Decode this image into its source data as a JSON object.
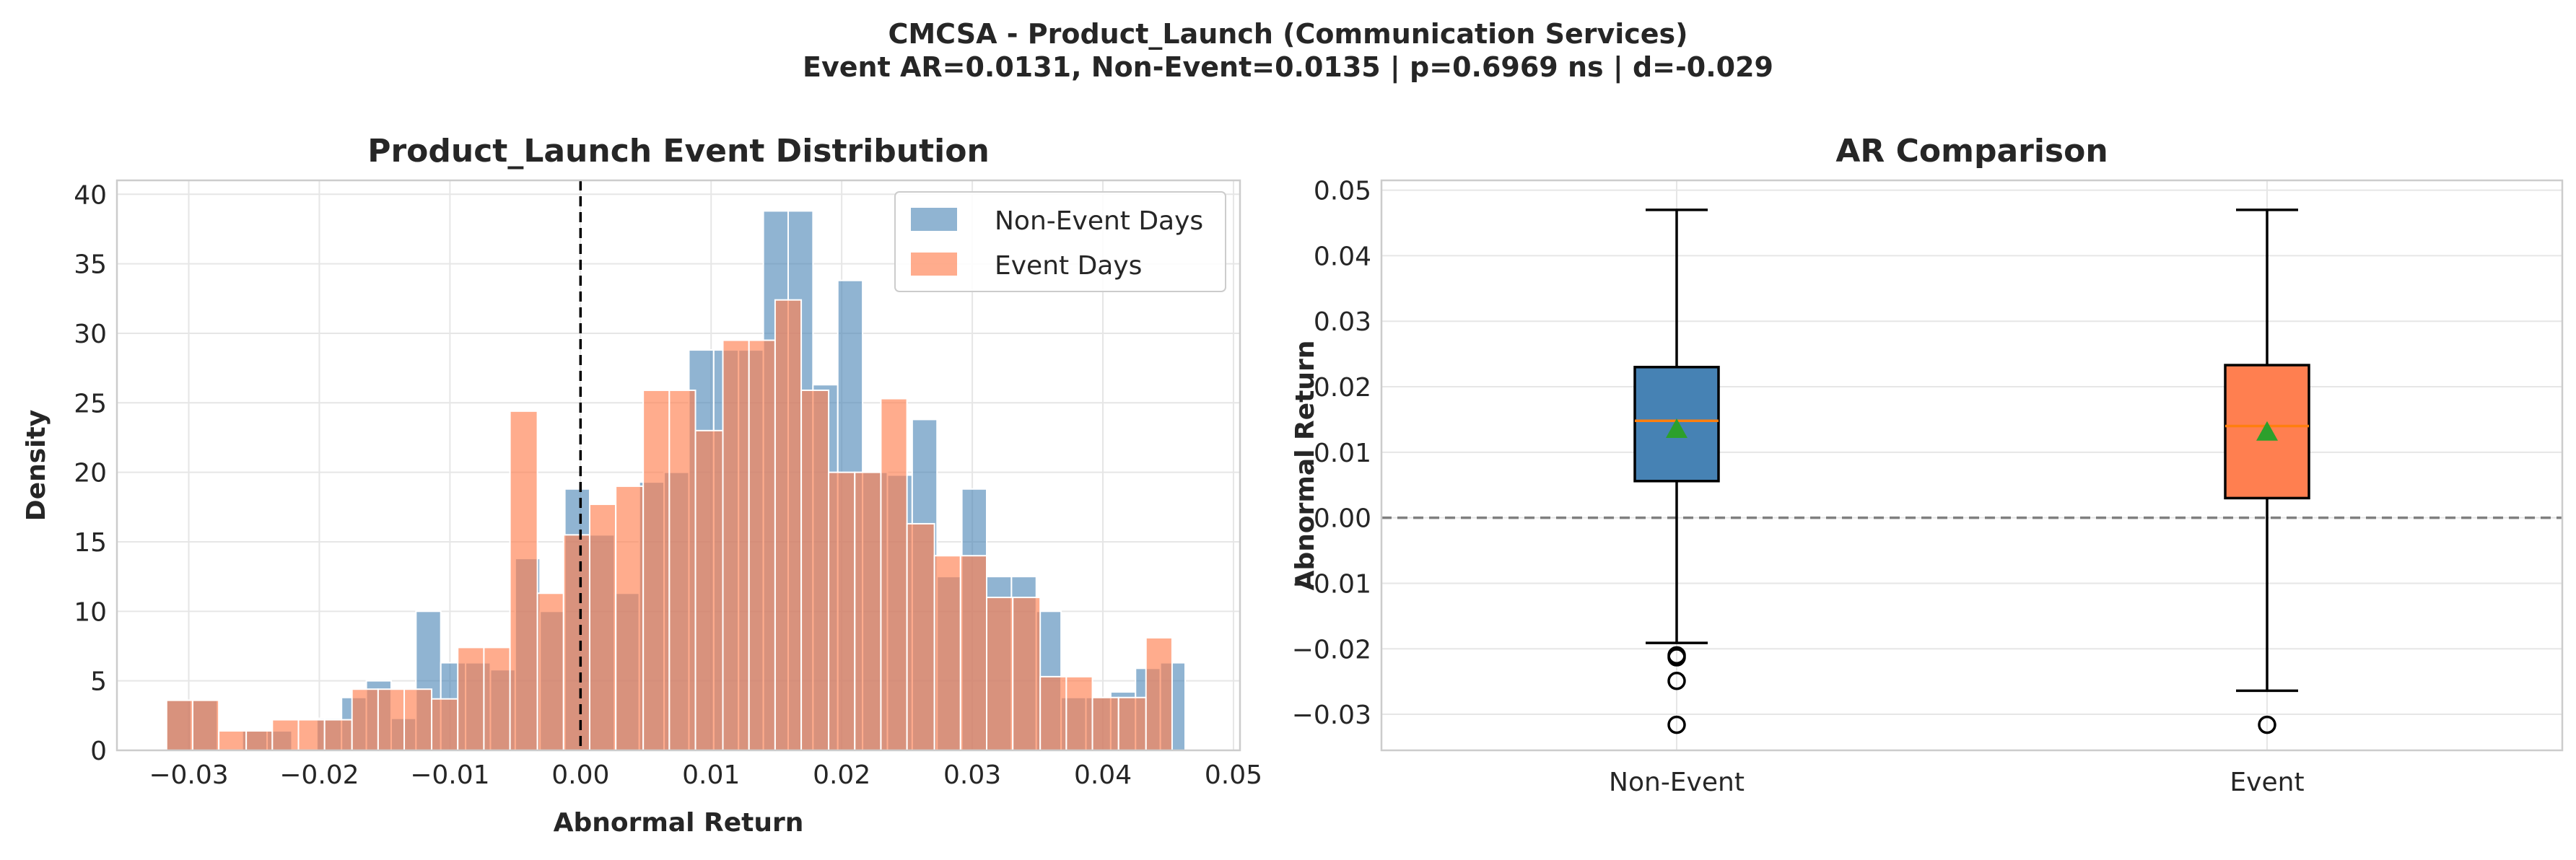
{
  "suptitle": {
    "line1": "CMCSA - Product_Launch (Communication Services)",
    "line2": "Event AR=0.0131, Non-Event=0.0135 | p=0.6969 ns | d=-0.029"
  },
  "colors": {
    "non_event": "#4682b4",
    "event": "#ff7f50",
    "median": "#ff7f0e",
    "mean": "#2ca02c",
    "grid": "#e6e6e6",
    "spine": "#cccccc"
  },
  "chart_data": [
    {
      "type": "histogram",
      "title": "Product_Launch Event Distribution",
      "xlabel": "Abnormal Return",
      "ylabel": "Density",
      "xlim": [
        -0.0355,
        0.0505
      ],
      "ylim": [
        0,
        41
      ],
      "xticks": [
        -0.03,
        -0.02,
        -0.01,
        0.0,
        0.01,
        0.02,
        0.03,
        0.04,
        0.05
      ],
      "xtick_labels": [
        "−0.03",
        "−0.02",
        "−0.01",
        "0.00",
        "0.01",
        "0.02",
        "0.03",
        "0.04",
        "0.05"
      ],
      "yticks": [
        0,
        5,
        10,
        15,
        20,
        25,
        30,
        35,
        40
      ],
      "legend_position": "upper-right",
      "reference_line_x": 0.0,
      "series": [
        {
          "name": "Non-Event Days",
          "key": "non_event",
          "alpha": 0.6,
          "bin_edges": [
            -0.0317,
            -0.0298,
            -0.0278,
            -0.0259,
            -0.024,
            -0.0221,
            -0.0202,
            -0.0183,
            -0.0164,
            -0.0145,
            -0.0126,
            -0.0107,
            -0.0088,
            -0.0069,
            -0.005,
            -0.0031,
            -0.0012,
            0.0007,
            0.0026,
            0.0045,
            0.0064,
            0.0083,
            0.0102,
            0.0121,
            0.014,
            0.0159,
            0.0178,
            0.0197,
            0.0216,
            0.0235,
            0.0254,
            0.0273,
            0.0292,
            0.0311,
            0.033,
            0.0349,
            0.0368,
            0.0387,
            0.0406,
            0.0425,
            0.0444,
            0.0463,
            0.0482
          ],
          "densities": [
            3.6,
            3.6,
            0,
            1.4,
            1.4,
            0,
            2.3,
            3.8,
            5.0,
            2.3,
            10.0,
            6.3,
            6.3,
            5.8,
            13.8,
            10.0,
            18.8,
            15.5,
            11.3,
            19.3,
            20.0,
            28.8,
            28.8,
            28.8,
            38.8,
            38.8,
            26.3,
            33.8,
            20.0,
            19.8,
            23.8,
            12.5,
            18.8,
            12.5,
            12.5,
            10.0,
            3.8,
            3.8,
            4.2,
            5.9,
            6.3,
            0
          ]
        },
        {
          "name": "Event Days",
          "key": "event",
          "alpha": 0.65,
          "bin_edges": [
            -0.0317,
            -0.0297,
            -0.0277,
            -0.0256,
            -0.0236,
            -0.0216,
            -0.0196,
            -0.0175,
            -0.0155,
            -0.0135,
            -0.0114,
            -0.0094,
            -0.0074,
            -0.0054,
            -0.0033,
            -0.0013,
            0.0007,
            0.0027,
            0.0048,
            0.0068,
            0.0088,
            0.0109,
            0.0129,
            0.0149,
            0.0169,
            0.019,
            0.021,
            0.023,
            0.025,
            0.0271,
            0.0291,
            0.0311,
            0.0331,
            0.0352,
            0.0372,
            0.0392,
            0.0412,
            0.0433,
            0.0453,
            0.0473
          ],
          "densities": [
            3.6,
            3.6,
            1.4,
            1.4,
            2.2,
            2.2,
            2.2,
            4.4,
            4.4,
            4.4,
            3.7,
            7.4,
            7.4,
            24.4,
            11.3,
            15.5,
            17.7,
            19.0,
            25.9,
            25.9,
            23.0,
            29.5,
            29.5,
            32.4,
            25.9,
            20.0,
            20.0,
            25.3,
            16.3,
            14.0,
            14.0,
            11.0,
            11.0,
            5.3,
            5.3,
            3.8,
            3.8,
            8.1,
            0
          ]
        }
      ]
    },
    {
      "type": "boxplot",
      "title": "AR Comparison",
      "ylabel": "Abnormal Return",
      "ylim": [
        -0.0355,
        0.0515
      ],
      "yticks": [
        -0.03,
        -0.02,
        -0.01,
        0.0,
        0.01,
        0.02,
        0.03,
        0.04,
        0.05
      ],
      "ytick_labels": [
        "−0.03",
        "−0.02",
        "−0.01",
        "0.00",
        "0.01",
        "0.02",
        "0.03",
        "0.04",
        "0.05"
      ],
      "categories": [
        "Non-Event",
        "Event"
      ],
      "reference_line_y": 0.0,
      "boxes": [
        {
          "label": "Non-Event",
          "key": "non_event",
          "whisker_low": -0.0191,
          "q1": 0.0056,
          "median": 0.0148,
          "q3": 0.023,
          "whisker_high": 0.047,
          "mean": 0.0135,
          "outliers": [
            -0.021,
            -0.0213,
            -0.0249,
            -0.0316
          ]
        },
        {
          "label": "Event",
          "key": "event",
          "whisker_low": -0.0264,
          "q1": 0.003,
          "median": 0.014,
          "q3": 0.0233,
          "whisker_high": 0.047,
          "mean": 0.0131,
          "outliers": [
            -0.0316
          ]
        }
      ]
    }
  ]
}
